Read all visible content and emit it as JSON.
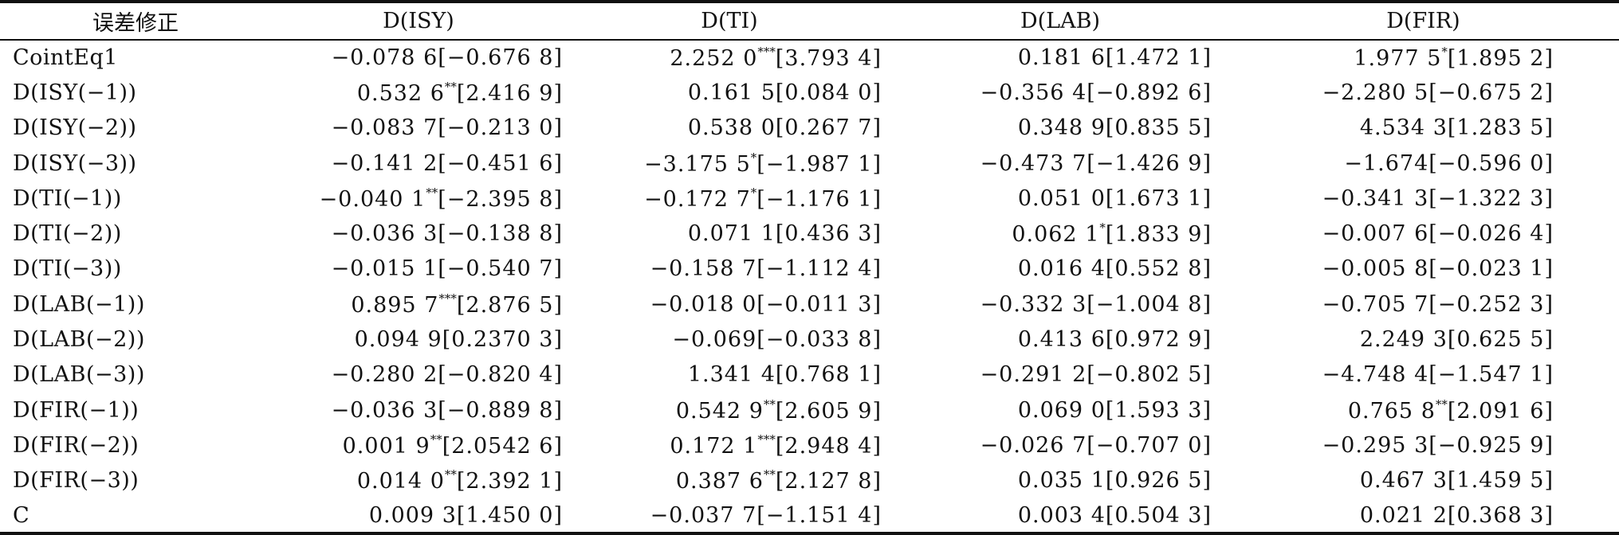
{
  "table": {
    "headers": [
      "误差修正",
      "D(ISY)",
      "D(TI)",
      "D(LAB)",
      "D(FIR)"
    ],
    "rows": [
      {
        "label": "CointEq1",
        "cells": [
          {
            "value": "−0.078 6",
            "stars": "",
            "bracket": "[−0.676 8]"
          },
          {
            "value": "2.252 0",
            "stars": "***",
            "bracket": "[3.793 4]"
          },
          {
            "value": "0.181 6",
            "stars": "",
            "bracket": "[1.472 1]"
          },
          {
            "value": "1.977 5",
            "stars": "*",
            "bracket": "[1.895 2]"
          }
        ]
      },
      {
        "label": "D(ISY(−1))",
        "cells": [
          {
            "value": "0.532 6",
            "stars": "**",
            "bracket": "[2.416 9]"
          },
          {
            "value": "0.161 5",
            "stars": "",
            "bracket": "[0.084 0]"
          },
          {
            "value": "−0.356 4",
            "stars": "",
            "bracket": "[−0.892 6]"
          },
          {
            "value": "−2.280 5",
            "stars": "",
            "bracket": "[−0.675 2]"
          }
        ]
      },
      {
        "label": "D(ISY(−2))",
        "cells": [
          {
            "value": "−0.083 7",
            "stars": "",
            "bracket": "[−0.213 0]"
          },
          {
            "value": "0.538 0",
            "stars": "",
            "bracket": "[0.267 7]"
          },
          {
            "value": "0.348 9",
            "stars": "",
            "bracket": "[0.835 5]"
          },
          {
            "value": "4.534 3",
            "stars": "",
            "bracket": "[1.283 5]"
          }
        ]
      },
      {
        "label": "D(ISY(−3))",
        "cells": [
          {
            "value": "−0.141 2",
            "stars": "",
            "bracket": "[−0.451 6]"
          },
          {
            "value": "−3.175 5",
            "stars": "*",
            "bracket": "[−1.987 1]"
          },
          {
            "value": "−0.473 7",
            "stars": "",
            "bracket": "[−1.426 9]"
          },
          {
            "value": "−1.674",
            "stars": "",
            "bracket": "[−0.596 0]"
          }
        ]
      },
      {
        "label": "D(TI(−1))",
        "cells": [
          {
            "value": "−0.040 1",
            "stars": "**",
            "bracket": "[−2.395 8]"
          },
          {
            "value": "−0.172 7",
            "stars": "*",
            "bracket": "[−1.176 1]"
          },
          {
            "value": "0.051 0",
            "stars": "",
            "bracket": "[1.673 1]"
          },
          {
            "value": "−0.341 3",
            "stars": "",
            "bracket": "[−1.322 3]"
          }
        ]
      },
      {
        "label": "D(TI(−2))",
        "cells": [
          {
            "value": "−0.036 3",
            "stars": "",
            "bracket": "[−0.138 8]"
          },
          {
            "value": "0.071 1",
            "stars": "",
            "bracket": "[0.436 3]"
          },
          {
            "value": "0.062 1",
            "stars": "*",
            "bracket": "[1.833 9]"
          },
          {
            "value": "−0.007 6",
            "stars": "",
            "bracket": "[−0.026 4]"
          }
        ]
      },
      {
        "label": "D(TI(−3))",
        "cells": [
          {
            "value": "−0.015 1",
            "stars": "",
            "bracket": "[−0.540 7]"
          },
          {
            "value": "−0.158 7",
            "stars": "",
            "bracket": "[−1.112 4]"
          },
          {
            "value": "0.016 4",
            "stars": "",
            "bracket": "[0.552 8]"
          },
          {
            "value": "−0.005 8",
            "stars": "",
            "bracket": "[−0.023 1]"
          }
        ]
      },
      {
        "label": "D(LAB(−1))",
        "cells": [
          {
            "value": "0.895 7",
            "stars": "***",
            "bracket": "[2.876 5]"
          },
          {
            "value": "−0.018 0",
            "stars": "",
            "bracket": "[−0.011 3]"
          },
          {
            "value": "−0.332 3",
            "stars": "",
            "bracket": "[−1.004 8]"
          },
          {
            "value": "−0.705 7",
            "stars": "",
            "bracket": "[−0.252 3]"
          }
        ]
      },
      {
        "label": "D(LAB(−2))",
        "cells": [
          {
            "value": "0.094 9",
            "stars": "",
            "bracket": "[0.2370 3]"
          },
          {
            "value": "−0.069",
            "stars": "",
            "bracket": "[−0.033 8]"
          },
          {
            "value": "0.413 6",
            "stars": "",
            "bracket": "[0.972 9]"
          },
          {
            "value": "2.249 3",
            "stars": "",
            "bracket": "[0.625 5]"
          }
        ]
      },
      {
        "label": "D(LAB(−3))",
        "cells": [
          {
            "value": "−0.280 2",
            "stars": "",
            "bracket": "[−0.820 4]"
          },
          {
            "value": "1.341 4",
            "stars": "",
            "bracket": "[0.768 1]"
          },
          {
            "value": "−0.291 2",
            "stars": "",
            "bracket": "[−0.802 5]"
          },
          {
            "value": "−4.748 4",
            "stars": "",
            "bracket": "[−1.547 1]"
          }
        ]
      },
      {
        "label": "D(FIR(−1))",
        "cells": [
          {
            "value": "−0.036 3",
            "stars": "",
            "bracket": "[−0.889 8]"
          },
          {
            "value": "0.542 9",
            "stars": "**",
            "bracket": "[2.605 9]"
          },
          {
            "value": "0.069 0",
            "stars": "",
            "bracket": "[1.593 3]"
          },
          {
            "value": "0.765 8",
            "stars": "**",
            "bracket": "[2.091 6]"
          }
        ]
      },
      {
        "label": "D(FIR(−2))",
        "cells": [
          {
            "value": "0.001 9",
            "stars": "**",
            "bracket": "[2.0542 6]"
          },
          {
            "value": "0.172 1",
            "stars": "***",
            "bracket": "[2.948 4]"
          },
          {
            "value": "−0.026 7",
            "stars": "",
            "bracket": "[−0.707 0]"
          },
          {
            "value": "−0.295 3",
            "stars": "",
            "bracket": "[−0.925 9]"
          }
        ]
      },
      {
        "label": "D(FIR(−3))",
        "cells": [
          {
            "value": "0.014 0",
            "stars": "**",
            "bracket": "[2.392 1]"
          },
          {
            "value": "0.387 6",
            "stars": "**",
            "bracket": "[2.127 8]"
          },
          {
            "value": "0.035 1",
            "stars": "",
            "bracket": "[0.926 5]"
          },
          {
            "value": "0.467 3",
            "stars": "",
            "bracket": "[1.459 5]"
          }
        ]
      },
      {
        "label": "C",
        "cells": [
          {
            "value": "0.009 3",
            "stars": "",
            "bracket": "[1.450 0]"
          },
          {
            "value": "−0.037 7",
            "stars": "",
            "bracket": "[−1.151 4]"
          },
          {
            "value": "0.003 4",
            "stars": "",
            "bracket": "[0.504 3]"
          },
          {
            "value": "0.021 2",
            "stars": "",
            "bracket": "[0.368 3]"
          }
        ]
      }
    ]
  }
}
